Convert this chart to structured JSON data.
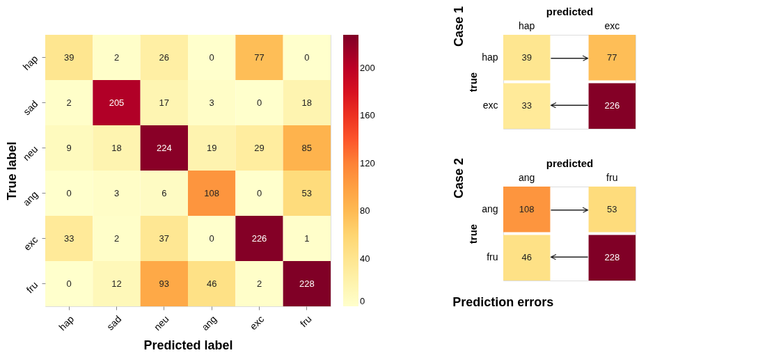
{
  "chart_data": [
    {
      "type": "heatmap",
      "xlabel": "Predicted label",
      "ylabel": "True label",
      "categories": [
        "hap",
        "sad",
        "neu",
        "ang",
        "exc",
        "fru"
      ],
      "y_categories": [
        "hap",
        "sad",
        "neu",
        "ang",
        "exc",
        "fru"
      ],
      "cells": [
        [
          39,
          2,
          26,
          0,
          77,
          0
        ],
        [
          2,
          205,
          17,
          3,
          0,
          18
        ],
        [
          9,
          18,
          224,
          19,
          29,
          85
        ],
        [
          0,
          3,
          6,
          108,
          0,
          53
        ],
        [
          33,
          2,
          37,
          0,
          226,
          1
        ],
        [
          0,
          12,
          93,
          46,
          2,
          228
        ]
      ],
      "clim": [
        0,
        228
      ],
      "cticks": [
        0,
        40,
        80,
        120,
        160,
        200
      ],
      "data_labels": true
    },
    {
      "type": "heatmap",
      "title": "Case 1",
      "xlabel": "predicted",
      "ylabel": "true",
      "categories": [
        "hap",
        "exc"
      ],
      "y_categories": [
        "hap",
        "exc"
      ],
      "cells": [
        [
          39,
          77
        ],
        [
          33,
          226
        ]
      ],
      "data_labels": true
    },
    {
      "type": "heatmap",
      "title": "Case 2",
      "xlabel": "predicted",
      "ylabel": "true",
      "categories": [
        "ang",
        "fru"
      ],
      "y_categories": [
        "ang",
        "fru"
      ],
      "cells": [
        [
          108,
          53
        ],
        [
          46,
          228
        ]
      ],
      "data_labels": true,
      "annotations": [
        "Prediction errors"
      ]
    }
  ]
}
